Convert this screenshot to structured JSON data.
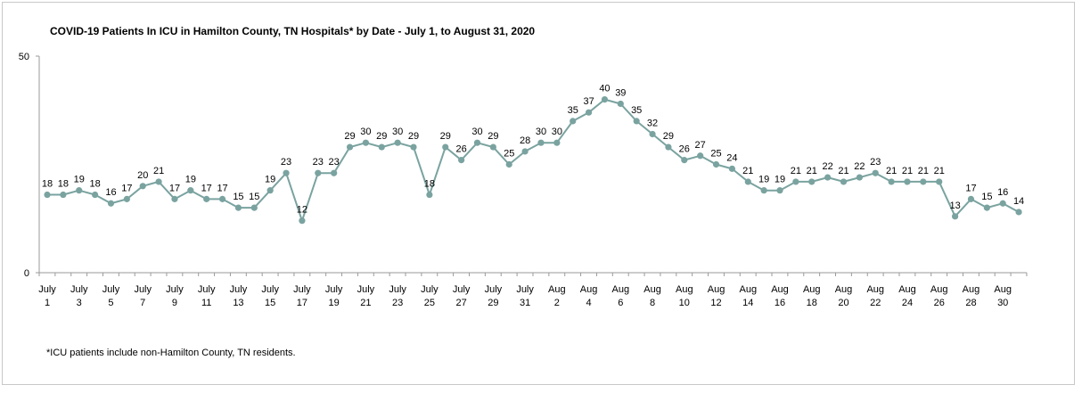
{
  "chart_data": {
    "type": "line",
    "title": "COVID-19 Patients In ICU in Hamilton County, TN Hospitals* by Date  - July 1, to August 31, 2020",
    "xlabel": "",
    "ylabel": "",
    "ylim": [
      0,
      50
    ],
    "yticks": [
      0,
      50
    ],
    "grid": false,
    "legend": "none",
    "line_color": "#7aa3a0",
    "x": [
      "July 1",
      "July 2",
      "July 3",
      "July 4",
      "July 5",
      "July 6",
      "July 7",
      "July 8",
      "July 9",
      "July 10",
      "July 11",
      "July 12",
      "July 13",
      "July 14",
      "July 15",
      "July 16",
      "July 17",
      "July 18",
      "July 19",
      "July 20",
      "July 21",
      "July 22",
      "July 23",
      "July 24",
      "July 25",
      "July 26",
      "July 27",
      "July 28",
      "July 29",
      "July 30",
      "July 31",
      "Aug 1",
      "Aug 2",
      "Aug 3",
      "Aug 4",
      "Aug 5",
      "Aug 6",
      "Aug 7",
      "Aug 8",
      "Aug 9",
      "Aug 10",
      "Aug 11",
      "Aug 12",
      "Aug 13",
      "Aug 14",
      "Aug 15",
      "Aug 16",
      "Aug 17",
      "Aug 18",
      "Aug 19",
      "Aug 20",
      "Aug 21",
      "Aug 22",
      "Aug 23",
      "Aug 24",
      "Aug 25",
      "Aug 26",
      "Aug 27",
      "Aug 28",
      "Aug 29",
      "Aug 30",
      "Aug 31"
    ],
    "tick_labels": [
      [
        "July",
        "1"
      ],
      [
        "July",
        "3"
      ],
      [
        "July",
        "5"
      ],
      [
        "July",
        "7"
      ],
      [
        "July",
        "9"
      ],
      [
        "July",
        "11"
      ],
      [
        "July",
        "13"
      ],
      [
        "July",
        "15"
      ],
      [
        "July",
        "17"
      ],
      [
        "July",
        "19"
      ],
      [
        "July",
        "21"
      ],
      [
        "July",
        "23"
      ],
      [
        "July",
        "25"
      ],
      [
        "July",
        "27"
      ],
      [
        "July",
        "29"
      ],
      [
        "July",
        "31"
      ],
      [
        "Aug",
        "2"
      ],
      [
        "Aug",
        "4"
      ],
      [
        "Aug",
        "6"
      ],
      [
        "Aug",
        "8"
      ],
      [
        "Aug",
        "10"
      ],
      [
        "Aug",
        "12"
      ],
      [
        "Aug",
        "14"
      ],
      [
        "Aug",
        "16"
      ],
      [
        "Aug",
        "18"
      ],
      [
        "Aug",
        "20"
      ],
      [
        "Aug",
        "22"
      ],
      [
        "Aug",
        "24"
      ],
      [
        "Aug",
        "26"
      ],
      [
        "Aug",
        "28"
      ],
      [
        "Aug",
        "30"
      ]
    ],
    "values": [
      18,
      18,
      19,
      18,
      16,
      17,
      20,
      21,
      17,
      19,
      17,
      17,
      15,
      15,
      19,
      23,
      12,
      23,
      23,
      29,
      30,
      29,
      30,
      29,
      18,
      29,
      26,
      30,
      29,
      25,
      28,
      30,
      30,
      35,
      37,
      40,
      39,
      35,
      32,
      29,
      26,
      27,
      25,
      24,
      21,
      19,
      19,
      21,
      21,
      22,
      21,
      22,
      23,
      21,
      21,
      21,
      21,
      13,
      17,
      15,
      16,
      14
    ]
  },
  "footnote": "*ICU patients include non-Hamilton County, TN  residents."
}
